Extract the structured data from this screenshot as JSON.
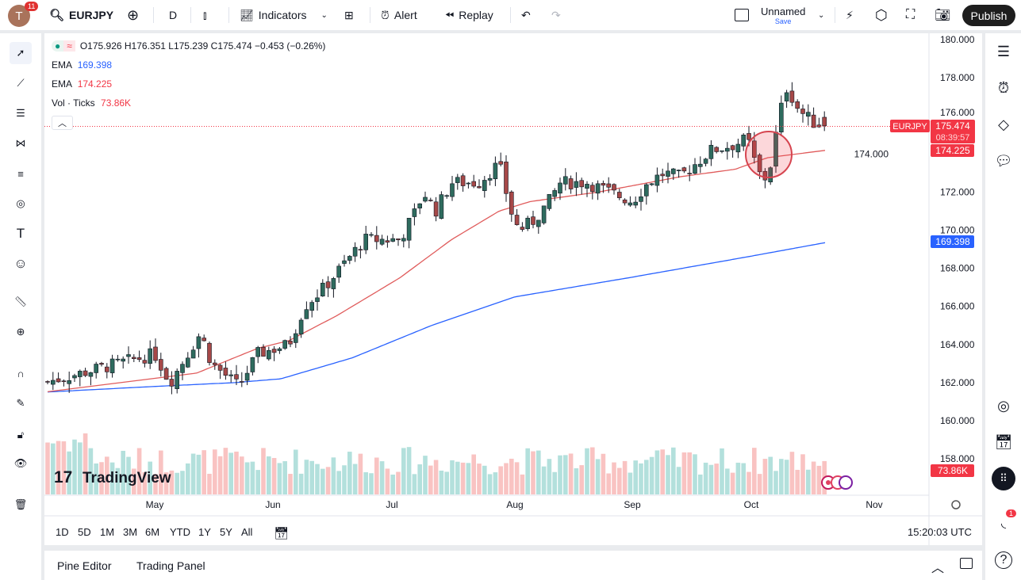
{
  "topbar": {
    "avatar_letter": "T",
    "notifications": "11",
    "symbol": "EURJPY",
    "interval": "D",
    "indicators_label": "Indicators",
    "alert_label": "Alert",
    "replay_label": "Replay",
    "layout_name": "Unnamed",
    "save_label": "Save",
    "publish_label": "Publish"
  },
  "legend": {
    "ohlc": "O175.926 H176.351 L175.239 C175.474 −0.453 (−0.26%)",
    "ema1_label": "EMA",
    "ema1_value": "169.398",
    "ema2_label": "EMA",
    "ema2_value": "174.225",
    "vol_label": "Vol · Ticks",
    "vol_value": "73.86K"
  },
  "price_axis": {
    "symbol_tag": "EURJPY",
    "last_price": "175.474",
    "countdown": "08:39:57",
    "ema50_tag": "174.225",
    "ema200_tag": "169.398",
    "vol_tag": "73.86K"
  },
  "time_range": {
    "buttons": [
      "1D",
      "5D",
      "1M",
      "3M",
      "6M",
      "YTD",
      "1Y",
      "5Y",
      "All"
    ],
    "clock": "15:20:03 UTC"
  },
  "bottom": {
    "pine_editor": "Pine Editor",
    "trading_panel": "Trading Panel"
  },
  "watermark": "TradingView",
  "colors": {
    "up": "#26a69a",
    "down": "#ef5350",
    "ema50": "#e05c5c",
    "ema200": "#2962ff",
    "accent": "#f23645",
    "blue_tag": "#2962ff"
  },
  "chart_data": {
    "type": "candlestick",
    "symbol": "EURJPY",
    "x_ticks": [
      "May",
      "Jun",
      "Jul",
      "Aug",
      "Sep",
      "Oct",
      "Nov"
    ],
    "y_ticks": [
      "180.000",
      "178.000",
      "176.000",
      "174.000",
      "172.000",
      "170.000",
      "168.000",
      "166.000",
      "164.000",
      "162.000",
      "160.000",
      "158.000"
    ],
    "ylim": [
      158,
      180
    ],
    "approx_closes": [
      [
        "04-03",
        161.5
      ],
      [
        "04-05",
        158.8
      ],
      [
        "04-09",
        162.5
      ],
      [
        "04-13",
        163
      ],
      [
        "04-21",
        162
      ],
      [
        "05-01",
        163.5
      ],
      [
        "05-05",
        162
      ],
      [
        "05-13",
        164.6
      ],
      [
        "05-16",
        163
      ],
      [
        "05-23",
        161.8
      ],
      [
        "05-28",
        163.5
      ],
      [
        "06-05",
        164
      ],
      [
        "06-09",
        166
      ],
      [
        "06-14",
        167
      ],
      [
        "06-20",
        168.5
      ],
      [
        "06-24",
        169.5
      ],
      [
        "07-03",
        169.5
      ],
      [
        "07-07",
        171
      ],
      [
        "07-09",
        172
      ],
      [
        "07-12",
        171
      ],
      [
        "07-16",
        172.5
      ],
      [
        "07-23",
        172.5
      ],
      [
        "07-28",
        173.5
      ],
      [
        "07-31",
        171
      ],
      [
        "08-02",
        170
      ],
      [
        "08-06",
        170.5
      ],
      [
        "08-10",
        171.5
      ],
      [
        "08-13",
        172.5
      ],
      [
        "08-20",
        172.5
      ],
      [
        "08-26",
        172
      ],
      [
        "09-01",
        171.5
      ],
      [
        "09-05",
        172.5
      ],
      [
        "09-09",
        173
      ],
      [
        "09-13",
        172.8
      ],
      [
        "09-17",
        173.5
      ],
      [
        "09-21",
        174.2
      ],
      [
        "09-27",
        174.5
      ],
      [
        "09-30",
        174.8
      ],
      [
        "10-02",
        173.5
      ],
      [
        "10-04",
        172.5
      ],
      [
        "10-06",
        173.5
      ],
      [
        "10-08",
        176
      ],
      [
        "10-10",
        177.5
      ],
      [
        "10-13",
        176.3
      ],
      [
        "10-17",
        175.6
      ],
      [
        "10-21",
        175.474
      ]
    ],
    "ema_50": [
      [
        "04-03",
        160.5
      ],
      [
        "04-21",
        161.5
      ],
      [
        "05-12",
        162.5
      ],
      [
        "05-28",
        163.8
      ],
      [
        "06-05",
        164.2
      ],
      [
        "06-17",
        165.5
      ],
      [
        "07-03",
        167.5
      ],
      [
        "07-16",
        169.5
      ],
      [
        "07-28",
        171
      ],
      [
        "08-05",
        171.5
      ],
      [
        "08-23",
        172
      ],
      [
        "09-13",
        172.8
      ],
      [
        "09-27",
        173.2
      ],
      [
        "10-05",
        173.8
      ],
      [
        "10-21",
        174.225
      ]
    ],
    "ema_200": [
      [
        "04-03",
        161.5
      ],
      [
        "05-01",
        161.8
      ],
      [
        "05-22",
        162
      ],
      [
        "06-03",
        162.2
      ],
      [
        "06-21",
        163.3
      ],
      [
        "07-11",
        165
      ],
      [
        "08-01",
        166.5
      ],
      [
        "08-31",
        167.5
      ],
      [
        "09-30",
        168.6
      ],
      [
        "10-21",
        169.398
      ]
    ],
    "last_volume": "73.86K"
  }
}
